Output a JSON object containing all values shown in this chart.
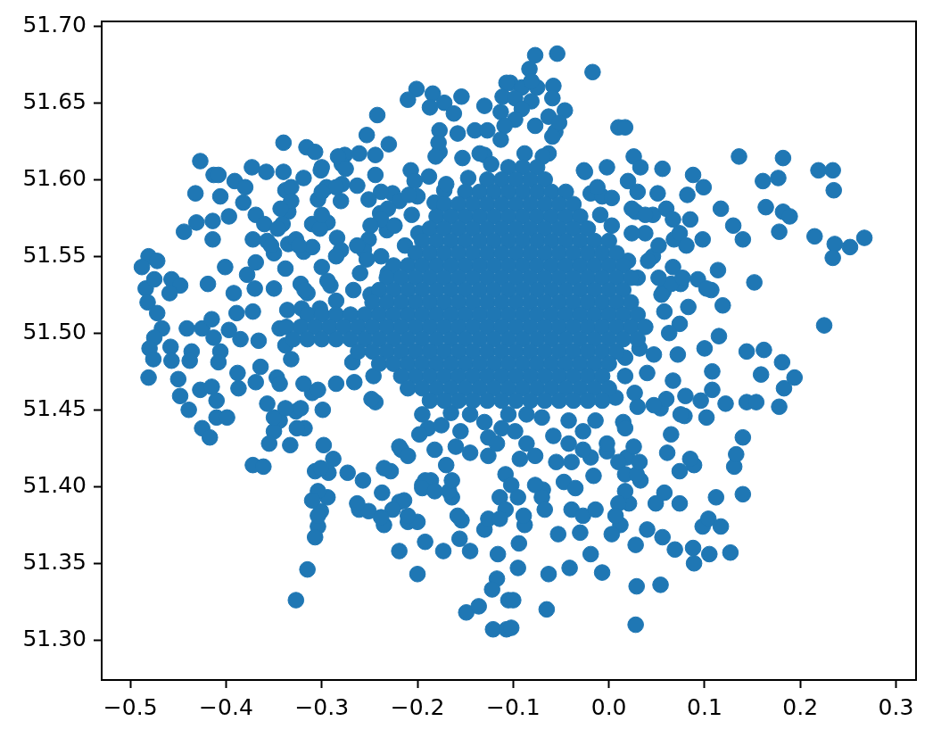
{
  "chart_data": {
    "type": "scatter",
    "color": "#1f77b4",
    "marker": "circle",
    "xlim": [
      -0.53,
      0.321
    ],
    "ylim": [
      51.274,
      51.703
    ],
    "xticks": [
      {
        "value": -0.5,
        "label": "−0.5"
      },
      {
        "value": -0.4,
        "label": "−0.4"
      },
      {
        "value": -0.3,
        "label": "−0.3"
      },
      {
        "value": -0.2,
        "label": "−0.2"
      },
      {
        "value": -0.1,
        "label": "−0.1"
      },
      {
        "value": 0,
        "label": "0.0"
      },
      0.1,
      0.2,
      0.3
    ],
    "yticks": [
      {
        "value": 51.3,
        "label": "51.30"
      },
      51.35,
      {
        "value": 51.4,
        "label": "51.40"
      },
      51.45,
      {
        "value": 51.5,
        "label": "51.50"
      },
      51.55,
      {
        "value": 51.6,
        "label": "51.60"
      },
      51.65,
      {
        "value": 51.7,
        "label": "51.70"
      }
    ],
    "x": [
      -0.077,
      -0.054,
      -0.017,
      -0.083,
      -0.103,
      -0.058,
      -0.046,
      0.01,
      0.017,
      0.026,
      0.033,
      0.056,
      0.136,
      0.182,
      0.219,
      0.234,
      0.235,
      0.161,
      0.177,
      0.088,
      0.099,
      0.082,
      0.117,
      0.164,
      0.182,
      0.189,
      0.178,
      0.13,
      0.14,
      0.215,
      0.236,
      0.252,
      0.267,
      0.234,
      0.114,
      0.152,
      0.119,
      0.083,
      0.058,
      0.098,
      0.085,
      0.068,
      0.046,
      0.06,
      0.051,
      0.028,
      -0.025,
      -0.002,
      0.225,
      0.115,
      0.107,
      0.075,
      0.057,
      0.074,
      -0.075,
      -0.063,
      -0.056,
      -0.019,
      -0.007,
      0.046,
      0.065,
      0.093,
      0.102,
      -0.201,
      -0.21,
      -0.184,
      -0.172,
      -0.187,
      -0.154,
      -0.162,
      -0.13,
      -0.107,
      -0.111,
      -0.242,
      -0.253,
      -0.23,
      -0.34,
      -0.316,
      -0.307,
      -0.427,
      -0.413,
      -0.408,
      -0.373,
      -0.358,
      -0.34,
      -0.338,
      -0.335,
      -0.341,
      -0.319,
      -0.301,
      -0.276,
      -0.261,
      -0.244,
      -0.279,
      -0.295,
      -0.279,
      -0.263,
      -0.28,
      -0.304,
      -0.251,
      -0.244,
      -0.207,
      -0.177,
      -0.158,
      -0.14,
      -0.177,
      -0.153,
      -0.13,
      -0.147,
      -0.172,
      -0.182,
      -0.2,
      -0.226,
      -0.219,
      -0.239,
      -0.232,
      -0.391,
      -0.38,
      -0.382,
      -0.369,
      -0.372,
      -0.432,
      -0.406,
      -0.397,
      -0.414,
      -0.414,
      -0.431,
      -0.444,
      -0.36,
      -0.357,
      -0.35,
      -0.335,
      -0.327,
      -0.31,
      -0.294,
      -0.319,
      -0.31,
      -0.284,
      -0.28,
      -0.251,
      -0.256,
      -0.481,
      -0.472,
      -0.488,
      -0.484,
      -0.475,
      -0.482,
      -0.472,
      -0.467,
      -0.475,
      -0.48,
      -0.457,
      -0.448,
      -0.459,
      -0.419,
      -0.401,
      -0.392,
      -0.378,
      -0.369,
      -0.37,
      -0.35,
      -0.338,
      -0.322,
      -0.315,
      -0.291,
      -0.389,
      -0.372,
      -0.441,
      -0.425,
      -0.415,
      -0.413,
      -0.397,
      -0.385,
      -0.366,
      -0.458,
      -0.436,
      -0.406,
      -0.336,
      -0.344,
      -0.338,
      -0.481,
      -0.476,
      -0.457,
      -0.438,
      -0.45,
      -0.448,
      -0.439,
      -0.427,
      -0.415,
      -0.41,
      -0.41,
      -0.399,
      -0.425,
      -0.417,
      -0.408,
      -0.388,
      -0.387,
      -0.364,
      -0.369,
      -0.347,
      -0.332,
      -0.357,
      -0.344,
      -0.35,
      -0.355,
      -0.333,
      -0.318,
      -0.327,
      -0.31,
      -0.299,
      -0.285,
      -0.266,
      -0.246,
      -0.244,
      -0.268,
      -0.372,
      -0.361,
      -0.298,
      -0.288,
      -0.307,
      -0.293,
      -0.273,
      -0.257,
      -0.237,
      -0.294,
      -0.301,
      -0.304,
      -0.307,
      -0.315,
      -0.327,
      -0.261,
      -0.251,
      -0.235,
      -0.219,
      -0.217,
      -0.228,
      -0.21,
      -0.2,
      -0.192,
      -0.173,
      -0.156,
      -0.145,
      -0.154,
      -0.219,
      -0.2,
      -0.195,
      -0.164,
      -0.114,
      -0.13,
      -0.116,
      -0.117,
      -0.122,
      -0.149,
      -0.136,
      -0.121,
      -0.107,
      -0.105,
      -0.219,
      -0.102,
      -0.1,
      -0.065,
      0.028,
      -0.063,
      -0.041,
      -0.019,
      -0.007,
      0.029,
      0.054,
      0.028,
      0.04,
      0.056,
      0.069,
      0.088,
      0.089,
      0.105,
      0.127,
      0.098,
      0.104,
      0.117,
      0.112,
      0.14,
      0.074,
      0.058,
      0.049,
      0.131,
      0.133,
      0.14,
      0.089,
      0.074,
      0.061,
      0.065,
      0.102,
      0.122,
      0.108,
      0.096,
      0.08,
      0.079,
      0.054,
      0.06,
      0.067,
      0.04,
      0.027,
      0.015,
      0.019,
      0.033,
      0.021,
      0.012,
      0.003,
      -0.03,
      -0.053,
      -0.039,
      -0.047,
      -0.069,
      -0.088,
      -0.094,
      -0.095,
      0.144,
      0.154,
      0.178,
      0.183,
      0.194,
      0.181,
      0.159,
      0.144,
      0.162,
      0.108,
      -0.002,
      -0.019,
      -0.016,
      -0.035,
      -0.055,
      -0.186,
      -0.167,
      0.1,
      -0.091,
      -0.081,
      -0.059,
      -0.081,
      -0.098,
      -0.113,
      -0.091,
      -0.052,
      -0.059,
      -0.063,
      -0.077,
      -0.098,
      -0.109,
      -0.113,
      -0.127,
      -0.178,
      -0.181,
      -0.135,
      -0.123,
      -0.088,
      -0.069,
      -0.3,
      -0.283,
      -0.238,
      -0.275,
      -0.285,
      -0.3,
      -0.203,
      -0.188,
      -0.17,
      -0.209,
      -0.231,
      -0.238,
      -0.249,
      -0.224,
      -0.332,
      -0.332,
      -0.343,
      -0.346,
      -0.353,
      -0.318,
      -0.324,
      -0.302,
      -0.3,
      -0.285,
      -0.3,
      -0.294,
      -0.263,
      -0.253,
      -0.238,
      -0.231,
      -0.26,
      -0.267,
      -0.249,
      -0.285,
      -0.302,
      -0.321,
      -0.206,
      -0.199,
      -0.213,
      -0.026,
      0.02,
      0.03,
      -0.012,
      0.003,
      -0.009,
      0.024,
      0.038,
      0.067,
      0.074,
      0.081,
      0.052,
      0.038,
      0.024,
      0.003,
      0.02,
      0.041,
      0.067,
      0.077,
      0.052,
      0.03,
      0.055,
      -0.195,
      -0.189,
      -0.198,
      -0.182,
      -0.17,
      -0.164,
      -0.192,
      -0.195,
      -0.182,
      -0.21,
      -0.235,
      -0.214,
      -0.21,
      -0.226,
      -0.238,
      -0.263,
      -0.301,
      -0.304,
      -0.31,
      -0.304,
      -0.326,
      -0.35,
      -0.338,
      -0.322,
      -0.248,
      -0.304,
      -0.319,
      -0.344,
      -0.13,
      -0.126,
      -0.126,
      -0.117,
      -0.108,
      -0.102,
      -0.095,
      -0.108,
      -0.089,
      -0.077,
      -0.07,
      -0.067,
      -0.086,
      -0.077,
      -0.093,
      -0.086,
      -0.07,
      -0.058,
      -0.042,
      -0.039,
      -0.027,
      -0.027,
      -0.014,
      -0.042,
      -0.027,
      -0.014,
      -0.002,
      0.01,
      0.017,
      0.017,
      0.01,
      0.007,
      0.029,
      0.026,
      0.017,
      0.032,
      0.085,
      0.047,
      0.075,
      0.047,
      0.063,
      0.072,
      -0.158,
      -0.126,
      -0.114,
      0.017,
      0.032,
      0.017,
      0.007,
      0.03,
      -0.165,
      -0.145,
      -0.175,
      -0.155,
      -0.16,
      -0.145,
      -0.105,
      -0.112,
      -0.098,
      -0.105,
      -0.09,
      -0.075,
      -0.127,
      -0.112,
      -0.097,
      -0.082,
      -0.067,
      -0.15,
      -0.135,
      -0.12,
      -0.105,
      -0.09,
      -0.075,
      -0.06,
      -0.045,
      -0.172,
      -0.157,
      -0.142,
      -0.127,
      -0.112,
      -0.097,
      -0.082,
      -0.067,
      -0.052,
      -0.037,
      -0.18,
      -0.165,
      -0.15,
      -0.135,
      -0.12,
      -0.105,
      -0.09,
      -0.075,
      -0.06,
      -0.045,
      -0.03,
      -0.187,
      -0.172,
      -0.157,
      -0.142,
      -0.127,
      -0.112,
      -0.097,
      -0.082,
      -0.067,
      -0.052,
      -0.037,
      -0.022,
      -0.195,
      -0.18,
      -0.165,
      -0.15,
      -0.135,
      -0.12,
      -0.105,
      -0.09,
      -0.075,
      -0.06,
      -0.045,
      -0.03,
      -0.015,
      0,
      -0.202,
      -0.187,
      -0.172,
      -0.157,
      -0.142,
      -0.127,
      -0.112,
      -0.097,
      -0.082,
      -0.067,
      -0.052,
      -0.037,
      -0.022,
      -0.007,
      0.008,
      -0.225,
      -0.21,
      -0.195,
      -0.18,
      -0.165,
      -0.15,
      -0.135,
      -0.12,
      -0.105,
      -0.09,
      -0.075,
      -0.06,
      -0.045,
      -0.03,
      -0.015,
      0,
      0.015,
      -0.232,
      -0.217,
      -0.202,
      -0.187,
      -0.172,
      -0.157,
      -0.142,
      -0.127,
      -0.112,
      -0.097,
      -0.082,
      -0.067,
      -0.052,
      -0.037,
      -0.022,
      -0.007,
      0.008,
      0.023,
      -0.24,
      -0.225,
      -0.21,
      -0.195,
      -0.18,
      -0.165,
      -0.15,
      -0.135,
      -0.12,
      -0.105,
      -0.09,
      -0.075,
      -0.06,
      -0.045,
      -0.03,
      -0.015,
      0,
      0.015,
      -0.247,
      -0.232,
      -0.217,
      -0.202,
      -0.187,
      -0.172,
      -0.157,
      -0.142,
      -0.127,
      -0.112,
      -0.097,
      -0.082,
      -0.067,
      -0.052,
      -0.037,
      -0.022,
      -0.007,
      0.008,
      0.023,
      -0.315,
      -0.3,
      -0.285,
      -0.27,
      -0.255,
      -0.24,
      -0.225,
      -0.21,
      -0.195,
      -0.18,
      -0.165,
      -0.15,
      -0.135,
      -0.12,
      -0.105,
      -0.09,
      -0.075,
      -0.06,
      -0.045,
      -0.03,
      -0.015,
      0,
      0.015,
      0.03,
      -0.337,
      -0.322,
      -0.307,
      -0.292,
      -0.277,
      -0.262,
      -0.247,
      -0.232,
      -0.217,
      -0.202,
      -0.187,
      -0.172,
      -0.157,
      -0.142,
      -0.127,
      -0.112,
      -0.097,
      -0.082,
      -0.067,
      -0.052,
      -0.037,
      -0.022,
      -0.007,
      0.008,
      0.023,
      0.038,
      -0.33,
      -0.315,
      -0.3,
      -0.285,
      -0.27,
      -0.255,
      -0.24,
      -0.225,
      -0.21,
      -0.195,
      -0.18,
      -0.165,
      -0.15,
      -0.135,
      -0.12,
      -0.105,
      -0.09,
      -0.075,
      -0.06,
      -0.045,
      -0.03,
      -0.015,
      0,
      0.015,
      0.03,
      -0.262,
      -0.247,
      -0.232,
      -0.217,
      -0.202,
      -0.187,
      -0.172,
      -0.157,
      -0.142,
      -0.127,
      -0.112,
      -0.097,
      -0.082,
      -0.067,
      -0.052,
      -0.037,
      -0.022,
      -0.007,
      0.008,
      -0.24,
      -0.225,
      -0.21,
      -0.195,
      -0.18,
      -0.165,
      -0.15,
      -0.135,
      -0.12,
      -0.105,
      -0.09,
      -0.075,
      -0.06,
      -0.045,
      -0.03,
      -0.015,
      0,
      -0.217,
      -0.202,
      -0.187,
      -0.172,
      -0.157,
      -0.142,
      -0.127,
      -0.112,
      -0.097,
      -0.082,
      -0.067,
      -0.052,
      -0.037,
      -0.022,
      -0.007,
      -0.21,
      -0.195,
      -0.18,
      -0.165,
      -0.15,
      -0.135,
      -0.12,
      -0.105,
      -0.09,
      -0.075,
      -0.06,
      -0.045,
      -0.03,
      -0.015,
      0,
      -0.187,
      -0.172,
      -0.157,
      -0.142,
      -0.127,
      -0.112,
      -0.097,
      -0.082,
      -0.067,
      -0.052,
      -0.037,
      -0.022,
      -0.007
    ],
    "values": [
      51.681,
      51.682,
      51.67,
      51.672,
      51.663,
      51.661,
      51.645,
      51.634,
      51.634,
      51.615,
      51.608,
      51.607,
      51.615,
      51.614,
      51.606,
      51.606,
      51.593,
      51.599,
      51.601,
      51.603,
      51.595,
      51.59,
      51.581,
      51.582,
      51.579,
      51.576,
      51.566,
      51.57,
      51.561,
      51.563,
      51.558,
      51.556,
      51.562,
      51.549,
      51.541,
      51.533,
      51.518,
      51.517,
      51.514,
      51.561,
      51.574,
      51.561,
      51.577,
      51.581,
      51.591,
      51.579,
      51.605,
      51.608,
      51.505,
      51.498,
      51.528,
      51.532,
      51.527,
      51.506,
      51.66,
      51.641,
      51.631,
      51.591,
      51.589,
      51.55,
      51.532,
      51.535,
      51.529,
      51.659,
      51.652,
      51.656,
      51.65,
      51.647,
      51.654,
      51.643,
      51.648,
      51.663,
      51.654,
      51.642,
      51.629,
      51.623,
      51.624,
      51.621,
      51.618,
      51.612,
      51.603,
      51.603,
      51.608,
      51.605,
      51.605,
      51.593,
      51.579,
      51.571,
      51.601,
      51.606,
      51.616,
      51.617,
      51.616,
      51.61,
      51.595,
      51.597,
      51.596,
      51.586,
      51.587,
      51.587,
      51.603,
      51.606,
      51.632,
      51.63,
      51.632,
      51.618,
      51.614,
      51.616,
      51.601,
      51.593,
      51.585,
      51.589,
      51.591,
      51.586,
      51.578,
      51.567,
      51.599,
      51.595,
      51.585,
      51.577,
      51.561,
      51.591,
      51.589,
      51.576,
      51.573,
      51.561,
      51.572,
      51.566,
      51.571,
      51.56,
      51.552,
      51.558,
      51.561,
      51.571,
      51.572,
      51.553,
      51.556,
      51.562,
      51.554,
      51.561,
      51.554,
      51.55,
      51.547,
      51.543,
      51.529,
      51.535,
      51.52,
      51.513,
      51.503,
      51.497,
      51.49,
      51.535,
      51.531,
      51.526,
      51.532,
      51.543,
      51.526,
      51.538,
      51.546,
      51.529,
      51.529,
      51.542,
      51.532,
      51.526,
      51.531,
      51.513,
      51.514,
      51.503,
      51.503,
      51.509,
      51.497,
      51.502,
      51.496,
      51.495,
      51.491,
      51.488,
      51.488,
      51.515,
      51.503,
      51.492,
      51.471,
      51.483,
      51.482,
      51.482,
      51.47,
      51.459,
      51.45,
      51.463,
      51.465,
      51.456,
      51.445,
      51.445,
      51.438,
      51.432,
      51.481,
      51.474,
      51.464,
      51.478,
      51.468,
      51.471,
      51.483,
      51.454,
      51.443,
      51.436,
      51.428,
      51.427,
      51.438,
      51.449,
      51.461,
      51.45,
      51.467,
      51.468,
      51.472,
      51.455,
      51.481,
      51.414,
      51.413,
      51.427,
      51.418,
      51.41,
      51.409,
      51.409,
      51.404,
      51.396,
      51.393,
      51.384,
      51.374,
      51.367,
      51.346,
      51.326,
      51.385,
      51.384,
      51.375,
      51.39,
      51.424,
      51.41,
      51.377,
      51.377,
      51.364,
      51.358,
      51.366,
      51.358,
      51.378,
      51.358,
      51.343,
      51.401,
      51.393,
      51.393,
      51.372,
      51.356,
      51.34,
      51.333,
      51.318,
      51.322,
      51.307,
      51.307,
      51.326,
      51.426,
      51.308,
      51.326,
      51.32,
      51.31,
      51.343,
      51.347,
      51.356,
      51.344,
      51.335,
      51.336,
      51.362,
      51.372,
      51.367,
      51.359,
      51.36,
      51.35,
      51.356,
      51.357,
      51.374,
      51.379,
      51.374,
      51.393,
      51.395,
      51.389,
      51.396,
      51.389,
      51.413,
      51.421,
      51.432,
      51.414,
      51.41,
      51.422,
      51.434,
      51.445,
      51.454,
      51.463,
      51.456,
      51.459,
      51.446,
      51.451,
      51.457,
      51.469,
      51.474,
      51.461,
      51.442,
      51.419,
      51.404,
      51.389,
      51.375,
      51.369,
      51.37,
      51.369,
      51.385,
      51.403,
      51.398,
      51.375,
      51.363,
      51.347,
      51.455,
      51.455,
      51.452,
      51.464,
      51.471,
      51.481,
      51.473,
      51.488,
      51.489,
      51.475,
      51.423,
      51.419,
      51.407,
      51.399,
      51.416,
      51.404,
      51.397,
      51.49,
      51.66,
      51.664,
      51.653,
      51.651,
      51.653,
      51.644,
      51.646,
      51.637,
      51.628,
      51.617,
      51.635,
      51.639,
      51.635,
      51.626,
      51.632,
      51.624,
      51.615,
      51.617,
      51.61,
      51.617,
      51.615,
      51.608,
      51.615,
      51.592,
      51.607,
      51.595,
      51.592,
      51.599,
      51.602,
      51.597,
      51.59,
      51.581,
      51.574,
      51.57,
      51.57,
      51.595,
      51.586,
      51.581,
      51.568,
      51.557,
      51.528,
      51.557,
      51.568,
      51.577,
      51.55,
      51.543,
      51.534,
      51.557,
      51.548,
      51.55,
      51.539,
      51.539,
      51.528,
      51.525,
      51.521,
      51.516,
      51.516,
      51.577,
      51.565,
      51.557,
      51.606,
      51.599,
      51.592,
      51.595,
      51.588,
      51.577,
      51.581,
      51.577,
      51.574,
      51.565,
      51.557,
      51.557,
      51.565,
      51.565,
      51.57,
      51.547,
      51.547,
      51.543,
      51.536,
      51.536,
      51.536,
      51.525,
      51.447,
      51.438,
      51.434,
      51.424,
      51.414,
      51.404,
      51.404,
      51.399,
      51.397,
      51.42,
      51.412,
      51.391,
      51.381,
      51.385,
      51.38,
      51.389,
      51.412,
      51.397,
      51.391,
      51.381,
      51.438,
      51.445,
      51.451,
      51.451,
      51.457,
      51.463,
      51.467,
      51.467,
      51.442,
      51.432,
      51.42,
      51.428,
      51.408,
      51.401,
      51.393,
      51.385,
      51.381,
      51.401,
      51.393,
      51.385,
      51.428,
      51.42,
      51.418,
      51.447,
      51.445,
      51.433,
      51.428,
      51.416,
      51.424,
      51.381,
      51.385,
      51.443,
      51.436,
      51.443,
      51.428,
      51.416,
      51.408,
      51.397,
      51.389,
      51.381,
      51.408,
      51.426,
      51.438,
      51.416,
      51.418,
      51.453,
      51.447,
      51.486,
      51.5,
      51.486,
      51.381,
      51.379,
      51.379,
      51.484,
      51.49,
      51.472,
      51.458,
      51.452,
      51.448,
      51.447,
      51.44,
      51.436,
      51.426,
      51.422,
      51.447,
      51.438,
      51.436,
      51.608,
      51.608,
      51.608,
      51.6,
      51.6,
      51.6,
      51.6,
      51.6,
      51.592,
      51.592,
      51.592,
      51.592,
      51.592,
      51.592,
      51.592,
      51.592,
      51.584,
      51.584,
      51.584,
      51.584,
      51.584,
      51.584,
      51.584,
      51.584,
      51.584,
      51.584,
      51.576,
      51.576,
      51.576,
      51.576,
      51.576,
      51.576,
      51.576,
      51.576,
      51.576,
      51.576,
      51.576,
      51.568,
      51.568,
      51.568,
      51.568,
      51.568,
      51.568,
      51.568,
      51.568,
      51.568,
      51.568,
      51.568,
      51.568,
      51.56,
      51.56,
      51.56,
      51.56,
      51.56,
      51.56,
      51.56,
      51.56,
      51.56,
      51.56,
      51.56,
      51.56,
      51.56,
      51.56,
      51.552,
      51.552,
      51.552,
      51.552,
      51.552,
      51.552,
      51.552,
      51.552,
      51.552,
      51.552,
      51.552,
      51.552,
      51.552,
      51.552,
      51.552,
      51.544,
      51.544,
      51.544,
      51.544,
      51.544,
      51.544,
      51.544,
      51.544,
      51.544,
      51.544,
      51.544,
      51.544,
      51.544,
      51.544,
      51.544,
      51.544,
      51.544,
      51.536,
      51.536,
      51.536,
      51.536,
      51.536,
      51.536,
      51.536,
      51.536,
      51.536,
      51.536,
      51.536,
      51.536,
      51.536,
      51.536,
      51.536,
      51.536,
      51.536,
      51.536,
      51.528,
      51.528,
      51.528,
      51.528,
      51.528,
      51.528,
      51.528,
      51.528,
      51.528,
      51.528,
      51.528,
      51.528,
      51.528,
      51.528,
      51.528,
      51.528,
      51.528,
      51.528,
      51.52,
      51.52,
      51.52,
      51.52,
      51.52,
      51.52,
      51.52,
      51.52,
      51.52,
      51.52,
      51.52,
      51.52,
      51.52,
      51.52,
      51.52,
      51.52,
      51.52,
      51.52,
      51.52,
      51.512,
      51.512,
      51.512,
      51.512,
      51.512,
      51.512,
      51.512,
      51.512,
      51.512,
      51.512,
      51.512,
      51.512,
      51.512,
      51.512,
      51.512,
      51.512,
      51.512,
      51.512,
      51.512,
      51.512,
      51.512,
      51.512,
      51.512,
      51.512,
      51.504,
      51.504,
      51.504,
      51.504,
      51.504,
      51.504,
      51.504,
      51.504,
      51.504,
      51.504,
      51.504,
      51.504,
      51.504,
      51.504,
      51.504,
      51.504,
      51.504,
      51.504,
      51.504,
      51.504,
      51.504,
      51.504,
      51.504,
      51.504,
      51.504,
      51.504,
      51.496,
      51.496,
      51.496,
      51.496,
      51.496,
      51.496,
      51.496,
      51.496,
      51.496,
      51.496,
      51.496,
      51.496,
      51.496,
      51.496,
      51.496,
      51.496,
      51.496,
      51.496,
      51.496,
      51.496,
      51.496,
      51.496,
      51.496,
      51.496,
      51.496,
      51.488,
      51.488,
      51.488,
      51.488,
      51.488,
      51.488,
      51.488,
      51.488,
      51.488,
      51.488,
      51.488,
      51.488,
      51.488,
      51.488,
      51.488,
      51.488,
      51.488,
      51.488,
      51.488,
      51.48,
      51.48,
      51.48,
      51.48,
      51.48,
      51.48,
      51.48,
      51.48,
      51.48,
      51.48,
      51.48,
      51.48,
      51.48,
      51.48,
      51.48,
      51.48,
      51.48,
      51.472,
      51.472,
      51.472,
      51.472,
      51.472,
      51.472,
      51.472,
      51.472,
      51.472,
      51.472,
      51.472,
      51.472,
      51.472,
      51.472,
      51.472,
      51.464,
      51.464,
      51.464,
      51.464,
      51.464,
      51.464,
      51.464,
      51.464,
      51.464,
      51.464,
      51.464,
      51.464,
      51.464,
      51.464,
      51.464,
      51.456,
      51.456,
      51.456,
      51.456,
      51.456,
      51.456,
      51.456,
      51.456,
      51.456,
      51.456,
      51.456,
      51.456,
      51.456
    ]
  }
}
